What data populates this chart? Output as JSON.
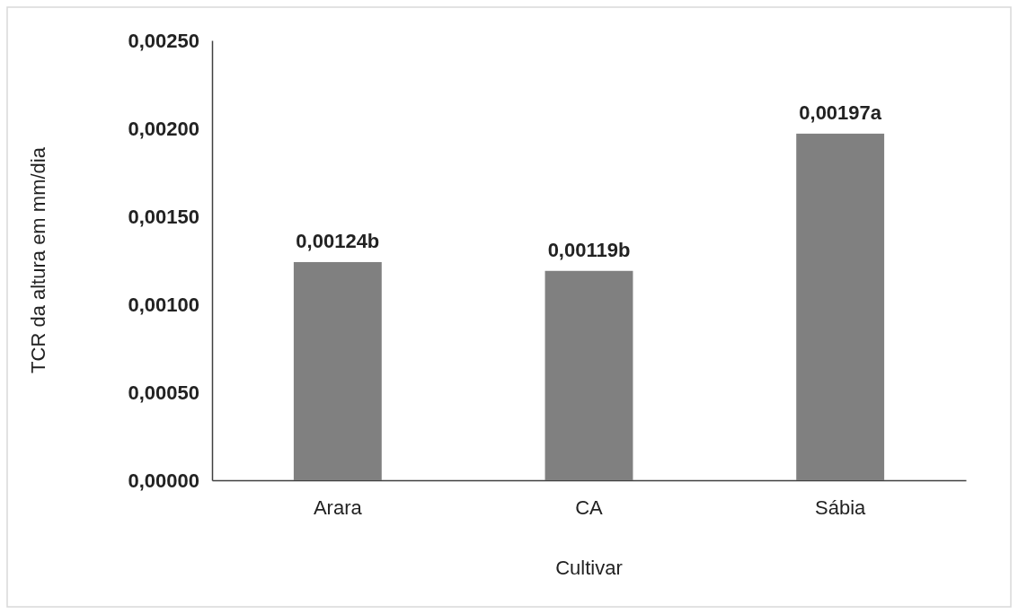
{
  "chart_data": {
    "type": "bar",
    "xlabel": "Cultivar",
    "ylabel": "TCR da altura  em mm/dia",
    "categories": [
      "Arara",
      "CA",
      "Sábia"
    ],
    "values": [
      0.00124,
      0.00119,
      0.00197
    ],
    "value_labels": [
      "0,00124b",
      "0,00119b",
      "0,00197a"
    ],
    "color": "#808080",
    "ylim": [
      0,
      0.0025
    ],
    "yticks": [
      {
        "value": 0,
        "label": "0,00000"
      },
      {
        "value": 0.0005,
        "label": "0,00050"
      },
      {
        "value": 0.001,
        "label": "0,00100"
      },
      {
        "value": 0.0015,
        "label": "0,00150"
      },
      {
        "value": 0.002,
        "label": "0,00200"
      },
      {
        "value": 0.0025,
        "label": "0,00250"
      }
    ],
    "grid": false
  }
}
